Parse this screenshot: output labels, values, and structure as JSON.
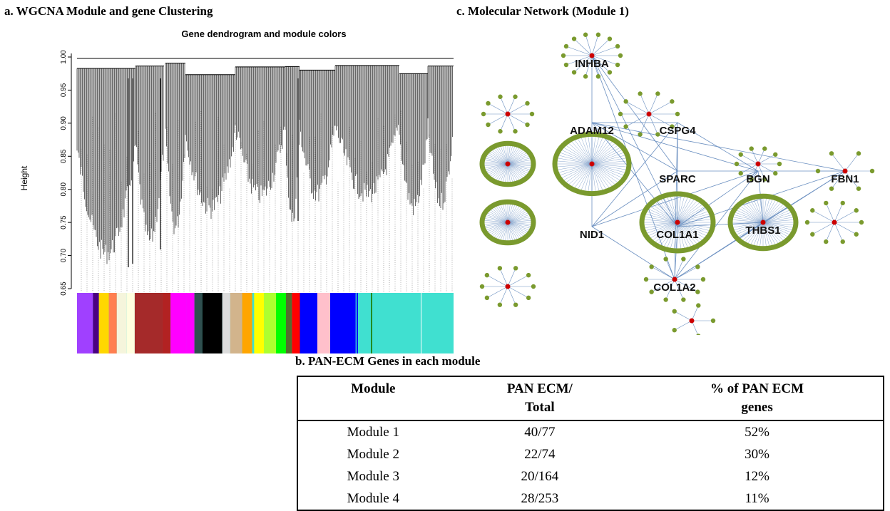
{
  "panel_a": {
    "title": "a. WGCNA Module and gene Clustering",
    "plot_title": "Gene dendrogram and module colors",
    "ylabel": "Height",
    "yticks": [
      "1.00",
      "0.95",
      "0.90",
      "0.85",
      "0.80",
      "0.75",
      "0.70",
      "0.65"
    ],
    "module_colors": [
      "#a040ff",
      "#4b0082",
      "#ffd700",
      "#ff7f50",
      "#f5f5dc",
      "#ffffe0",
      "#a52a2a",
      "#b22222",
      "#ff00ff",
      "#ff00ff",
      "#2f4f4f",
      "#000000",
      "#dcdcdc",
      "#d2b48c",
      "#ffa500",
      "#ffff00",
      "#adff2f",
      "#00ff00",
      "#556b2f",
      "#ff0000",
      "#0000ff",
      "#40e0d0"
    ]
  },
  "panel_b": {
    "title": "b. PAN-ECM Genes in each module",
    "headers": {
      "module": "Module",
      "ratio_line1": "PAN ECM/",
      "ratio_line2": "Total",
      "pct_line1": "% of PAN ECM",
      "pct_line2": "genes"
    },
    "rows": [
      {
        "module": "Module 1",
        "ratio": "40/77",
        "pct": "52%"
      },
      {
        "module": "Module 2",
        "ratio": "22/74",
        "pct": "30%"
      },
      {
        "module": "Module 3",
        "ratio": "20/164",
        "pct": "12%"
      },
      {
        "module": "Module 4",
        "ratio": "28/253",
        "pct": "11%"
      }
    ]
  },
  "panel_c": {
    "title": "c. Molecular Network (Module 1)",
    "hubs": [
      "INHBA",
      "ADAM12",
      "CSPG4",
      "SPARC",
      "BGN",
      "FBN1",
      "NID1",
      "COL1A1",
      "THBS1",
      "COL1A2"
    ],
    "node_color": "#7a9a2e",
    "hub_color": "#cc0000",
    "edge_color": "#6a8fc0"
  }
}
